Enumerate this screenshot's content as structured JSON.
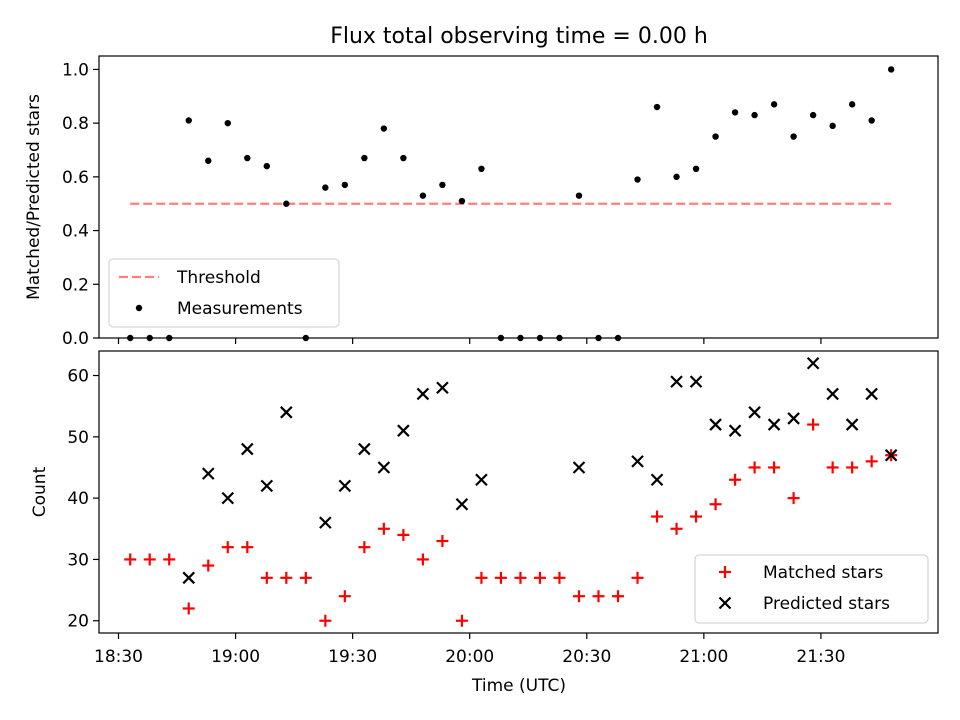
{
  "title": "Flux total observing time = 0.00 h",
  "chart_data": [
    {
      "type": "scatter",
      "ylabel": "Matched/Predicted stars",
      "xlabel": "",
      "ylim": [
        0.0,
        1.05
      ],
      "yticks": [
        "0.0",
        "0.2",
        "0.4",
        "0.6",
        "0.8",
        "1.0"
      ],
      "legend": {
        "placement": "lower-left",
        "entries": [
          "Threshold",
          "Measurements"
        ]
      },
      "threshold": {
        "name": "Threshold",
        "y": 0.5,
        "x_start": "18:33",
        "x_end": "21:48",
        "color": "#ff7f7f",
        "style": "dashed"
      },
      "series": [
        {
          "name": "Measurements",
          "marker": "dot",
          "color": "#000000",
          "x": [
            "18:33",
            "18:38",
            "18:43",
            "18:48",
            "18:53",
            "18:58",
            "19:03",
            "19:08",
            "19:13",
            "19:18",
            "19:23",
            "19:28",
            "19:33",
            "19:38",
            "19:43",
            "19:48",
            "19:53",
            "19:58",
            "20:03",
            "20:08",
            "20:13",
            "20:18",
            "20:23",
            "20:28",
            "20:33",
            "20:38",
            "20:43",
            "20:48",
            "20:53",
            "20:58",
            "21:03",
            "21:08",
            "21:13",
            "21:18",
            "21:23",
            "21:28",
            "21:33",
            "21:38",
            "21:43",
            "21:48"
          ],
          "y": [
            0.0,
            0.0,
            0.0,
            0.81,
            0.66,
            0.8,
            0.67,
            0.64,
            0.5,
            0.0,
            0.56,
            0.57,
            0.67,
            0.78,
            0.67,
            0.53,
            0.57,
            0.51,
            0.63,
            0.0,
            0.0,
            0.0,
            0.0,
            0.53,
            0.0,
            0.0,
            0.59,
            0.86,
            0.6,
            0.63,
            0.75,
            0.84,
            0.83,
            0.87,
            0.75,
            0.83,
            0.79,
            0.87,
            0.81,
            1.0
          ]
        }
      ]
    },
    {
      "type": "scatter",
      "ylabel": "Count",
      "xlabel": "Time (UTC)",
      "ylim": [
        18,
        64
      ],
      "yticks": [
        "20",
        "30",
        "40",
        "50",
        "60"
      ],
      "x_range": [
        "18:25",
        "22:00"
      ],
      "xticks": [
        "18:30",
        "19:00",
        "19:30",
        "20:00",
        "20:30",
        "21:00",
        "21:30"
      ],
      "legend": {
        "placement": "lower-right",
        "entries": [
          "Matched stars",
          "Predicted stars"
        ]
      },
      "series": [
        {
          "name": "Matched stars",
          "marker": "plus",
          "color": "#ff0000",
          "x": [
            "18:33",
            "18:38",
            "18:43",
            "18:48",
            "18:53",
            "18:58",
            "19:03",
            "19:08",
            "19:13",
            "19:18",
            "19:23",
            "19:28",
            "19:33",
            "19:38",
            "19:43",
            "19:48",
            "19:53",
            "19:58",
            "20:03",
            "20:08",
            "20:13",
            "20:18",
            "20:23",
            "20:28",
            "20:33",
            "20:38",
            "20:43",
            "20:48",
            "20:53",
            "20:58",
            "21:03",
            "21:08",
            "21:13",
            "21:18",
            "21:23",
            "21:28",
            "21:33",
            "21:38",
            "21:43",
            "21:48"
          ],
          "y": [
            30,
            30,
            30,
            22,
            29,
            32,
            32,
            27,
            27,
            27,
            20,
            24,
            32,
            35,
            34,
            30,
            33,
            20,
            27,
            27,
            27,
            27,
            27,
            24,
            24,
            24,
            27,
            37,
            35,
            37,
            39,
            43,
            45,
            45,
            40,
            52,
            45,
            45,
            46,
            47
          ]
        },
        {
          "name": "Predicted stars",
          "marker": "x",
          "color": "#000000",
          "x": [
            "18:48",
            "18:53",
            "18:58",
            "19:03",
            "19:08",
            "19:13",
            "19:23",
            "19:28",
            "19:33",
            "19:38",
            "19:43",
            "19:48",
            "19:53",
            "19:58",
            "20:03",
            "20:28",
            "20:43",
            "20:48",
            "20:53",
            "20:58",
            "21:03",
            "21:08",
            "21:13",
            "21:18",
            "21:23",
            "21:28",
            "21:33",
            "21:38",
            "21:43",
            "21:48"
          ],
          "y": [
            27,
            44,
            40,
            48,
            42,
            54,
            36,
            42,
            48,
            45,
            51,
            57,
            58,
            39,
            43,
            45,
            46,
            43,
            59,
            59,
            52,
            51,
            54,
            52,
            53,
            62,
            57,
            52,
            57,
            47
          ]
        }
      ]
    }
  ]
}
